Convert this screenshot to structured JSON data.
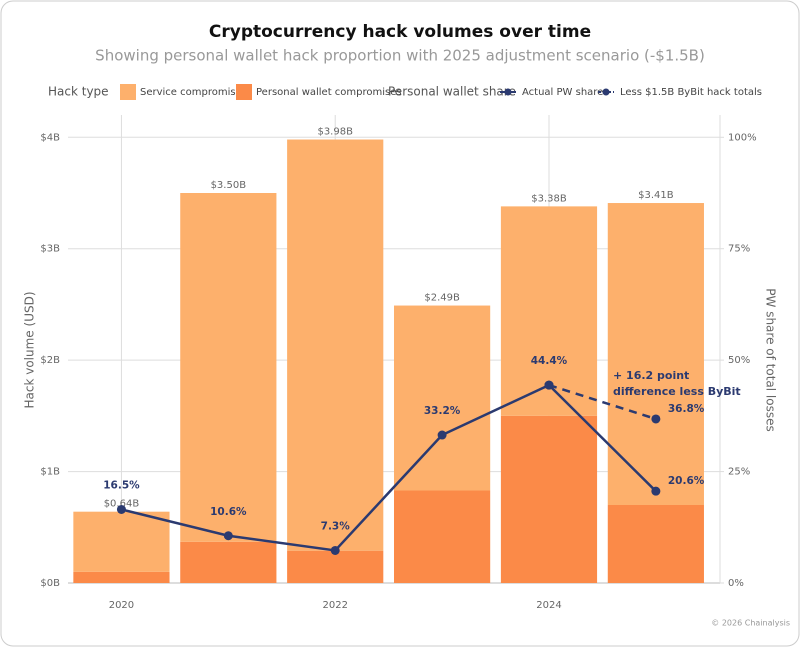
{
  "chart_data": {
    "type": "bar",
    "title": "Cryptocurrency hack volumes over time",
    "subtitle": "Showing personal wallet hack proportion with 2025 adjustment scenario (-$1.5B)",
    "x": [
      2020,
      2021,
      2022,
      2023,
      2024,
      2025
    ],
    "xlim": [
      2019.5,
      2025.6
    ],
    "xticks": [
      2020,
      2022,
      2024
    ],
    "ylim": [
      0,
      4.2
    ],
    "yticks": [
      {
        "value": 0,
        "label": "$0B"
      },
      {
        "value": 1,
        "label": "$1B"
      },
      {
        "value": 2,
        "label": "$2B"
      },
      {
        "value": 3,
        "label": "$3B"
      },
      {
        "value": 4,
        "label": "$4B"
      }
    ],
    "y2lim": [
      0,
      105
    ],
    "y2ticks": [
      {
        "value": 0,
        "label": "0%"
      },
      {
        "value": 25,
        "label": "25%"
      },
      {
        "value": 50,
        "label": "50%"
      },
      {
        "value": 75,
        "label": "75%"
      },
      {
        "value": 100,
        "label": "100%"
      }
    ],
    "ylabel": "Hack volume (USD)",
    "y2label": "PW share of total losses",
    "grid": true,
    "legend_titles": [
      "Hack type",
      "Personal wallet share"
    ],
    "series": [
      {
        "name": "Service compromises",
        "type": "bar",
        "color": "#fdb06c",
        "values": [
          0.54,
          3.13,
          3.69,
          1.66,
          1.88,
          2.71
        ]
      },
      {
        "name": "Personal wallet compromises",
        "type": "bar",
        "color": "#fb8a48",
        "values": [
          0.1,
          0.37,
          0.29,
          0.83,
          1.5,
          0.7
        ]
      },
      {
        "name": "Actual PW share",
        "type": "line",
        "axis": "y2",
        "color": "#2b3a70",
        "dashed": false,
        "values": [
          16.5,
          10.6,
          7.3,
          33.2,
          44.4,
          20.6
        ],
        "value_labels": [
          "16.5%",
          "10.6%",
          "7.3%",
          "33.2%",
          "44.4%",
          "20.6%"
        ]
      },
      {
        "name": "Less $1.5B ByBit hack totals",
        "type": "line",
        "axis": "y2",
        "color": "#2b3a70",
        "dashed": true,
        "values": [
          null,
          null,
          null,
          null,
          44.4,
          36.8
        ],
        "value_labels": [
          null,
          null,
          null,
          null,
          null,
          "36.8%"
        ]
      }
    ],
    "totals": [
      0.64,
      3.5,
      3.98,
      2.49,
      3.38,
      3.41
    ],
    "total_labels": [
      "$0.64B",
      "$3.50B",
      "$3.98B",
      "$2.49B",
      "$3.38B",
      "$3.41B"
    ],
    "annotation_lines": [
      "+ 16.2 point",
      "difference less ByBit"
    ],
    "footer": "© 2026 Chainalysis"
  }
}
